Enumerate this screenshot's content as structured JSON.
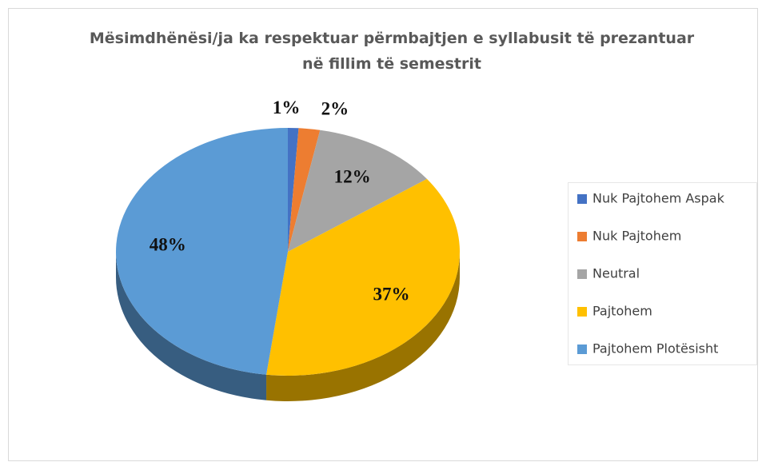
{
  "chart_data": {
    "type": "pie",
    "title": "Mësimdhënësi/ja ka respektuar përmbajtjen e syllabusit të prezantuar në fillim të semestrit",
    "categories": [
      "Nuk Pajtohem Aspak",
      "Nuk Pajtohem",
      "Neutral",
      "Pajtohem",
      "Pajtohem Plotësisht"
    ],
    "values": [
      1,
      2,
      12,
      37,
      48
    ],
    "value_labels": [
      "1%",
      "2%",
      "12%",
      "37%",
      "48%"
    ],
    "colors": [
      "#4472c4",
      "#ed7d31",
      "#a5a5a5",
      "#ffc000",
      "#5b9bd5"
    ],
    "legend": "right"
  }
}
